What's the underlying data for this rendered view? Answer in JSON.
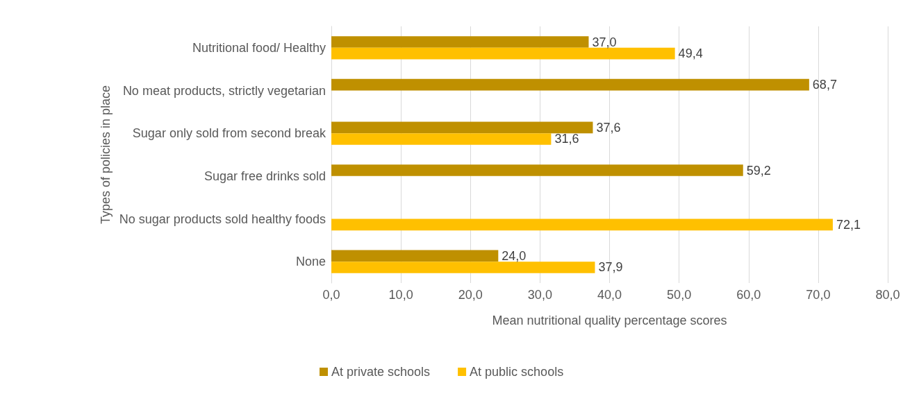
{
  "chart_data": {
    "type": "bar",
    "orientation": "horizontal",
    "xlabel": "Mean nutritional quality percentage scores",
    "ylabel": "Types of policies in place",
    "categories": [
      "Nutritional food/ Healthy",
      "No meat products, strictly vegetarian",
      "Sugar only sold from second break",
      "Sugar free drinks sold",
      "No sugar products sold healthy foods",
      "None"
    ],
    "series": [
      {
        "name": "At private schools",
        "color": "#bf9000",
        "values": [
          37.0,
          68.7,
          37.6,
          59.2,
          null,
          24.0
        ],
        "value_labels": [
          "37,0",
          "68,7",
          "37,6",
          "59,2",
          null,
          "24,0"
        ]
      },
      {
        "name": "At public schools",
        "color": "#ffc000",
        "values": [
          49.4,
          null,
          31.6,
          null,
          72.1,
          37.9
        ],
        "value_labels": [
          "49,4",
          null,
          "31,6",
          null,
          "72,1",
          "37,9"
        ]
      }
    ],
    "xlim": [
      0,
      80
    ],
    "xticks": [
      {
        "value": 0,
        "label": "0,0"
      },
      {
        "value": 10,
        "label": "10,0"
      },
      {
        "value": 20,
        "label": "20,0"
      },
      {
        "value": 30,
        "label": "30,0"
      },
      {
        "value": 40,
        "label": "40,0"
      },
      {
        "value": 50,
        "label": "50,0"
      },
      {
        "value": 60,
        "label": "60,0"
      },
      {
        "value": 70,
        "label": "70,0"
      },
      {
        "value": 80,
        "label": "80,0"
      }
    ],
    "grid": "x",
    "legend": "bottom"
  }
}
